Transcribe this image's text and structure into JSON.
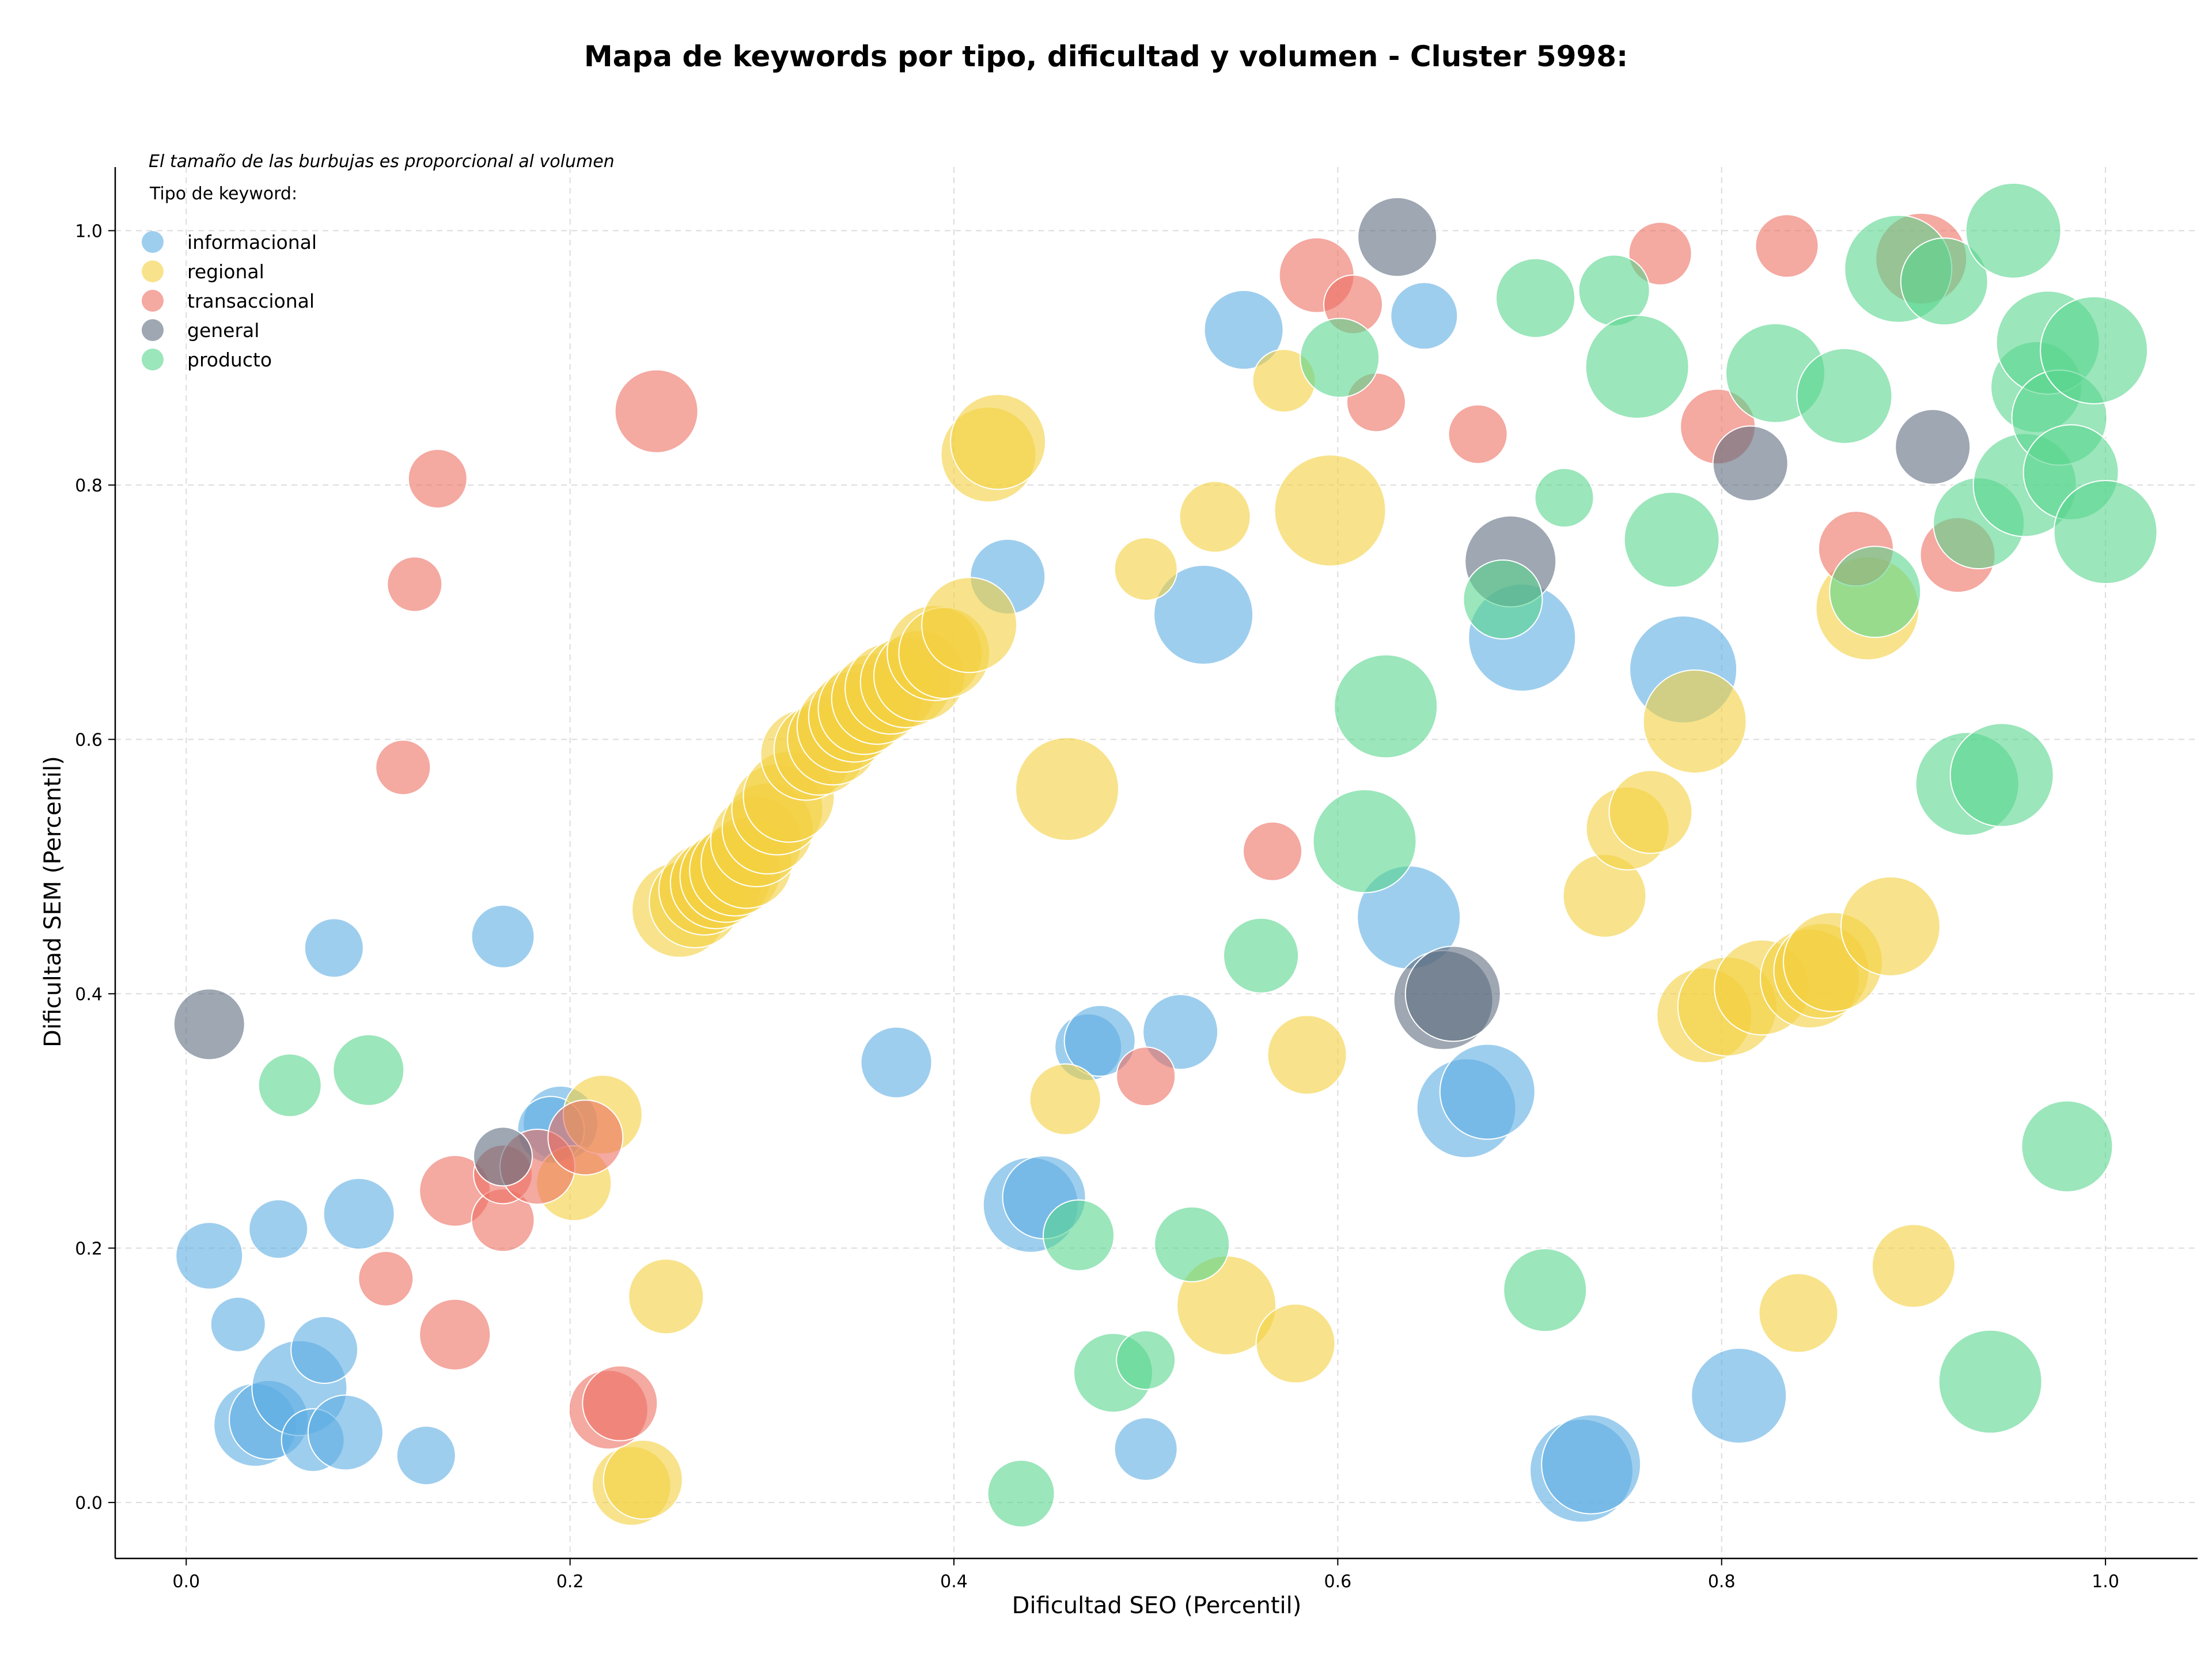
{
  "chart_data": {
    "type": "scatter",
    "title": "Mapa de keywords por tipo, dificultad y volumen - Cluster 5998:",
    "xlabel": "Dificultad SEO (Percentil)",
    "ylabel": "Dificultad SEM (Percentil)",
    "xlim": [
      -0.037,
      1.048
    ],
    "ylim": [
      -0.044,
      1.05
    ],
    "xticks": [
      "0.0",
      "0.2",
      "0.4",
      "0.6",
      "0.8",
      "1.0"
    ],
    "yticks": [
      "0.0",
      "0.2",
      "0.4",
      "0.6",
      "0.8",
      "1.0"
    ],
    "grid": true,
    "legend_position": "top-left",
    "size_note": "El tamaño de las burbujas es proporcional al volumen",
    "legend_title": "Tipo de keyword:",
    "series": [
      {
        "name": "informacional",
        "color": "#5dade2",
        "points": [
          [
            0.012,
            0.194,
            0.4
          ],
          [
            0.027,
            0.14,
            0.25
          ],
          [
            0.048,
            0.215,
            0.3
          ],
          [
            0.036,
            0.061,
            0.6
          ],
          [
            0.043,
            0.065,
            0.55
          ],
          [
            0.059,
            0.09,
            0.75
          ],
          [
            0.066,
            0.049,
            0.35
          ],
          [
            0.072,
            0.12,
            0.4
          ],
          [
            0.077,
            0.436,
            0.3
          ],
          [
            0.083,
            0.055,
            0.5
          ],
          [
            0.09,
            0.227,
            0.45
          ],
          [
            0.125,
            0.037,
            0.3
          ],
          [
            0.165,
            0.445,
            0.35
          ],
          [
            0.195,
            0.298,
            0.5
          ],
          [
            0.19,
            0.293,
            0.4
          ],
          [
            0.37,
            0.346,
            0.45
          ],
          [
            0.428,
            0.728,
            0.5
          ],
          [
            0.44,
            0.234,
            0.75
          ],
          [
            0.447,
            0.24,
            0.6
          ],
          [
            0.47,
            0.358,
            0.4
          ],
          [
            0.476,
            0.363,
            0.45
          ],
          [
            0.5,
            0.042,
            0.35
          ],
          [
            0.518,
            0.37,
            0.5
          ],
          [
            0.53,
            0.698,
            0.8
          ],
          [
            0.551,
            0.922,
            0.55
          ],
          [
            0.637,
            0.46,
            0.85
          ],
          [
            0.645,
            0.933,
            0.4
          ],
          [
            0.667,
            0.31,
            0.8
          ],
          [
            0.678,
            0.323,
            0.75
          ],
          [
            0.696,
            0.68,
            0.9
          ],
          [
            0.727,
            0.025,
            0.85
          ],
          [
            0.732,
            0.03,
            0.8
          ],
          [
            0.78,
            0.655,
            0.9
          ],
          [
            0.809,
            0.084,
            0.75
          ]
        ]
      },
      {
        "name": "regional",
        "color": "#f4d03f",
        "points": [
          [
            0.202,
            0.251,
            0.5
          ],
          [
            0.217,
            0.305,
            0.55
          ],
          [
            0.232,
            0.013,
            0.55
          ],
          [
            0.238,
            0.018,
            0.55
          ],
          [
            0.25,
            0.162,
            0.5
          ],
          [
            0.257,
            0.466,
            0.75
          ],
          [
            0.265,
            0.472,
            0.7
          ],
          [
            0.27,
            0.482,
            0.7
          ],
          [
            0.276,
            0.487,
            0.7
          ],
          [
            0.281,
            0.492,
            0.7
          ],
          [
            0.286,
            0.497,
            0.7
          ],
          [
            0.292,
            0.503,
            0.7
          ],
          [
            0.297,
            0.52,
            0.7
          ],
          [
            0.303,
            0.53,
            0.7
          ],
          [
            0.308,
            0.545,
            0.7
          ],
          [
            0.314,
            0.555,
            0.7
          ],
          [
            0.323,
            0.588,
            0.7
          ],
          [
            0.33,
            0.592,
            0.7
          ],
          [
            0.337,
            0.6,
            0.7
          ],
          [
            0.342,
            0.61,
            0.7
          ],
          [
            0.348,
            0.618,
            0.7
          ],
          [
            0.353,
            0.624,
            0.7
          ],
          [
            0.36,
            0.632,
            0.7
          ],
          [
            0.367,
            0.64,
            0.7
          ],
          [
            0.375,
            0.645,
            0.7
          ],
          [
            0.382,
            0.65,
            0.7
          ],
          [
            0.39,
            0.668,
            0.75
          ],
          [
            0.395,
            0.668,
            0.7
          ],
          [
            0.408,
            0.69,
            0.75
          ],
          [
            0.418,
            0.824,
            0.75
          ],
          [
            0.423,
            0.834,
            0.75
          ],
          [
            0.459,
            0.561,
            0.85
          ],
          [
            0.458,
            0.317,
            0.45
          ],
          [
            0.5,
            0.734,
            0.35
          ],
          [
            0.536,
            0.775,
            0.45
          ],
          [
            0.542,
            0.155,
            0.8
          ],
          [
            0.572,
            0.882,
            0.35
          ],
          [
            0.578,
            0.125,
            0.55
          ],
          [
            0.584,
            0.352,
            0.55
          ],
          [
            0.596,
            0.78,
            0.95
          ],
          [
            0.739,
            0.477,
            0.6
          ],
          [
            0.751,
            0.53,
            0.6
          ],
          [
            0.763,
            0.543,
            0.6
          ],
          [
            0.786,
            0.614,
            0.85
          ],
          [
            0.791,
            0.383,
            0.75
          ],
          [
            0.803,
            0.39,
            0.8
          ],
          [
            0.821,
            0.405,
            0.75
          ],
          [
            0.84,
            0.149,
            0.55
          ],
          [
            0.846,
            0.412,
            0.8
          ],
          [
            0.852,
            0.418,
            0.75
          ],
          [
            0.858,
            0.425,
            0.8
          ],
          [
            0.876,
            0.703,
            0.85
          ],
          [
            0.888,
            0.453,
            0.8
          ],
          [
            0.9,
            0.186,
            0.6
          ]
        ]
      },
      {
        "name": "transaccional",
        "color": "#ec7063",
        "points": [
          [
            0.104,
            0.176,
            0.25
          ],
          [
            0.113,
            0.578,
            0.25
          ],
          [
            0.119,
            0.722,
            0.25
          ],
          [
            0.131,
            0.805,
            0.3
          ],
          [
            0.14,
            0.132,
            0.45
          ],
          [
            0.14,
            0.245,
            0.45
          ],
          [
            0.165,
            0.222,
            0.35
          ],
          [
            0.165,
            0.258,
            0.3
          ],
          [
            0.183,
            0.264,
            0.5
          ],
          [
            0.208,
            0.287,
            0.5
          ],
          [
            0.22,
            0.073,
            0.55
          ],
          [
            0.226,
            0.078,
            0.5
          ],
          [
            0.245,
            0.858,
            0.6
          ],
          [
            0.5,
            0.335,
            0.3
          ],
          [
            0.566,
            0.512,
            0.3
          ],
          [
            0.589,
            0.965,
            0.5
          ],
          [
            0.608,
            0.942,
            0.3
          ],
          [
            0.62,
            0.865,
            0.3
          ],
          [
            0.673,
            0.84,
            0.3
          ],
          [
            0.768,
            0.982,
            0.35
          ],
          [
            0.798,
            0.846,
            0.5
          ],
          [
            0.834,
            0.988,
            0.35
          ],
          [
            0.87,
            0.75,
            0.5
          ],
          [
            0.904,
            0.978,
            0.7
          ],
          [
            0.923,
            0.745,
            0.5
          ]
        ]
      },
      {
        "name": "general",
        "color": "#5d6d7e",
        "points": [
          [
            0.012,
            0.376,
            0.45
          ],
          [
            0.165,
            0.272,
            0.3
          ],
          [
            0.631,
            0.995,
            0.55
          ],
          [
            0.655,
            0.395,
            0.8
          ],
          [
            0.66,
            0.4,
            0.75
          ],
          [
            0.69,
            0.74,
            0.7
          ],
          [
            0.815,
            0.817,
            0.5
          ],
          [
            0.91,
            0.83,
            0.5
          ]
        ]
      },
      {
        "name": "producto",
        "color": "#58d68d",
        "points": [
          [
            0.054,
            0.328,
            0.35
          ],
          [
            0.095,
            0.34,
            0.45
          ],
          [
            0.435,
            0.007,
            0.4
          ],
          [
            0.465,
            0.21,
            0.45
          ],
          [
            0.483,
            0.102,
            0.55
          ],
          [
            0.5,
            0.112,
            0.3
          ],
          [
            0.524,
            0.203,
            0.5
          ],
          [
            0.56,
            0.43,
            0.5
          ],
          [
            0.601,
            0.9,
            0.55
          ],
          [
            0.614,
            0.52,
            0.85
          ],
          [
            0.625,
            0.626,
            0.85
          ],
          [
            0.686,
            0.71,
            0.55
          ],
          [
            0.703,
            0.947,
            0.55
          ],
          [
            0.708,
            0.167,
            0.6
          ],
          [
            0.718,
            0.79,
            0.3
          ],
          [
            0.744,
            0.953,
            0.45
          ],
          [
            0.756,
            0.893,
            0.85
          ],
          [
            0.774,
            0.757,
            0.75
          ],
          [
            0.828,
            0.888,
            0.8
          ],
          [
            0.864,
            0.87,
            0.75
          ],
          [
            0.88,
            0.716,
            0.7
          ],
          [
            0.892,
            0.97,
            0.9
          ],
          [
            0.916,
            0.96,
            0.65
          ],
          [
            0.928,
            0.565,
            0.85
          ],
          [
            0.934,
            0.77,
            0.7
          ],
          [
            0.94,
            0.095,
            0.85
          ],
          [
            0.946,
            0.572,
            0.85
          ],
          [
            0.952,
            1.0,
            0.75
          ],
          [
            0.958,
            0.8,
            0.85
          ],
          [
            0.964,
            0.877,
            0.7
          ],
          [
            0.97,
            0.912,
            0.85
          ],
          [
            0.976,
            0.853,
            0.75
          ],
          [
            0.98,
            0.28,
            0.7
          ],
          [
            0.982,
            0.81,
            0.75
          ],
          [
            0.994,
            0.906,
            0.9
          ],
          [
            1.0,
            0.763,
            0.85
          ]
        ]
      }
    ]
  }
}
